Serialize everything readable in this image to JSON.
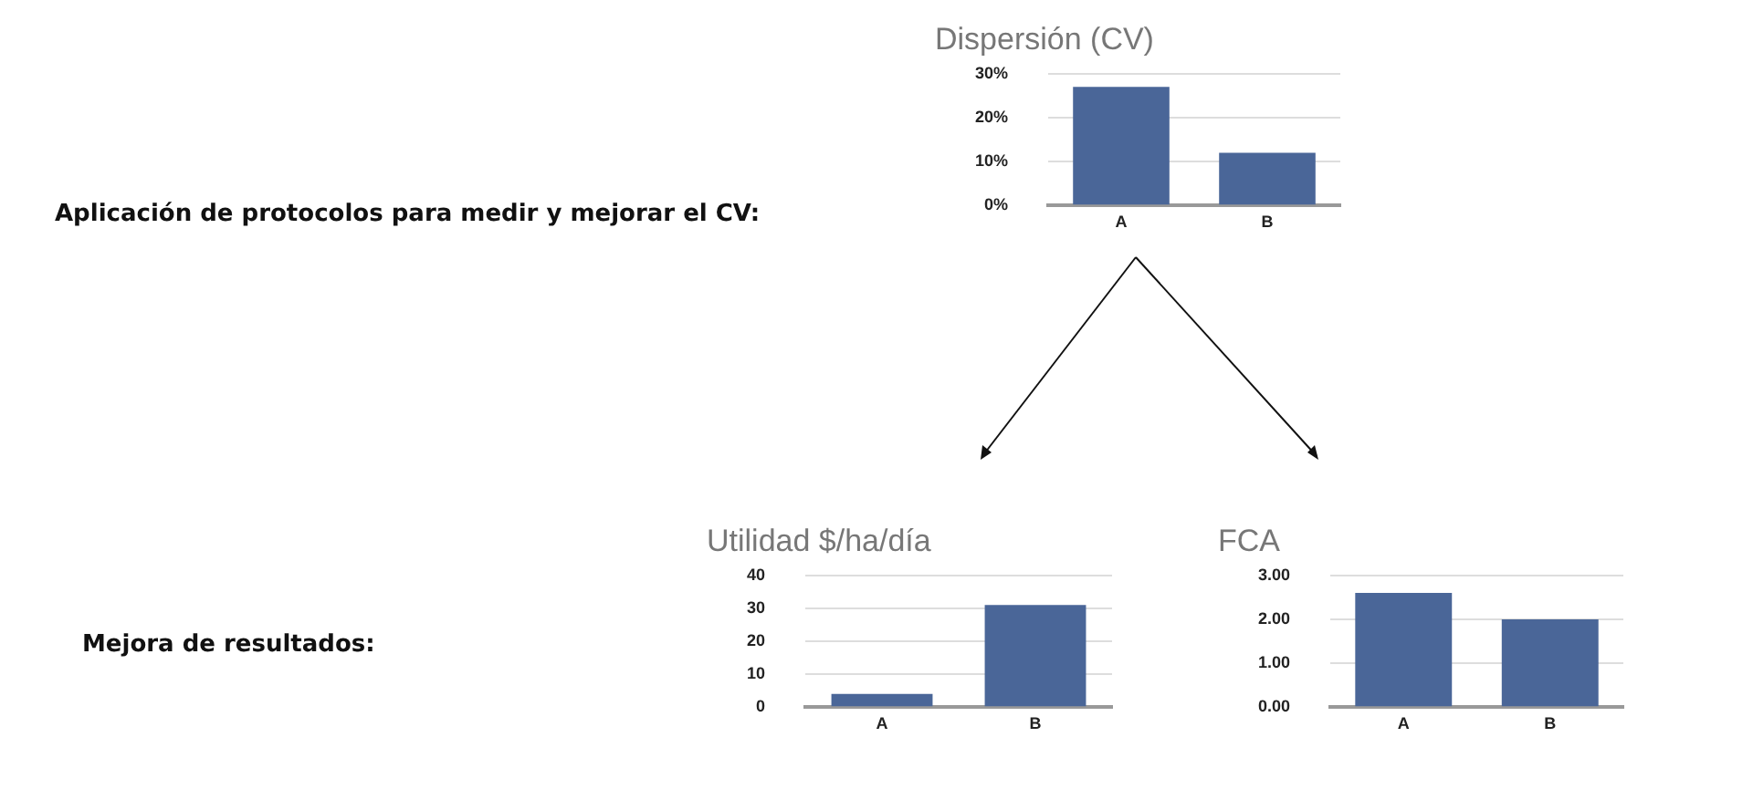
{
  "chart_data": [
    {
      "type": "bar",
      "title": "Dispersión (CV)",
      "categories": [
        "A",
        "B"
      ],
      "values": [
        27,
        12
      ],
      "color": "#4a6698",
      "ylim": [
        0,
        30
      ],
      "yticks": [
        {
          "value": 0,
          "label": "0%"
        },
        {
          "value": 10,
          "label": "10%"
        },
        {
          "value": 20,
          "label": "20%"
        },
        {
          "value": 30,
          "label": "30%"
        }
      ],
      "grid": "y",
      "annotations": [
        "Aplicación de protocolos para medir y mejorar el CV:"
      ]
    },
    {
      "type": "bar",
      "title": "Utilidad $/ha/día",
      "categories": [
        "A",
        "B"
      ],
      "values": [
        4,
        31
      ],
      "color": "#4a6698",
      "ylim": [
        0,
        40
      ],
      "yticks": [
        0,
        10,
        20,
        30,
        40
      ],
      "grid": "y",
      "annotations": [
        "Mejora de resultados:"
      ]
    },
    {
      "type": "bar",
      "title": "FCA",
      "categories": [
        "A",
        "B"
      ],
      "values": [
        2.6,
        2.0
      ],
      "color": "#4a6698",
      "ylim": [
        0,
        3
      ],
      "yticks": [
        {
          "value": 0,
          "label": "0.00"
        },
        {
          "value": 1,
          "label": "1.00"
        },
        {
          "value": 2,
          "label": "2.00"
        },
        {
          "value": 3,
          "label": "3.00"
        }
      ],
      "grid": "y"
    }
  ]
}
